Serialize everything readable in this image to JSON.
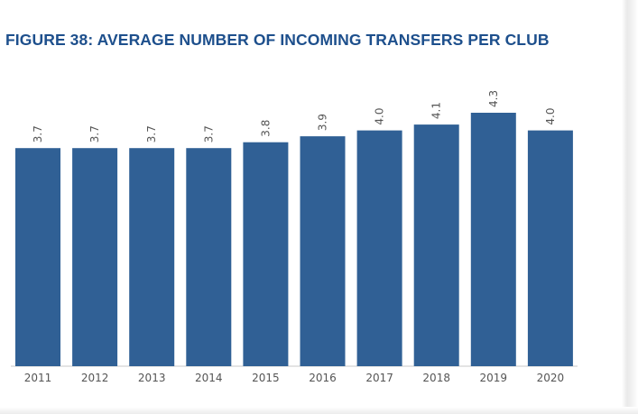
{
  "chart_data": {
    "type": "bar",
    "title": "FIGURE 38: AVERAGE NUMBER OF INCOMING TRANSFERS PER CLUB",
    "categories": [
      "2011",
      "2012",
      "2013",
      "2014",
      "2015",
      "2016",
      "2017",
      "2018",
      "2019",
      "2020"
    ],
    "values": [
      3.7,
      3.7,
      3.7,
      3.7,
      3.8,
      3.9,
      4.0,
      4.1,
      4.3,
      4.0
    ],
    "value_labels": [
      "3.7",
      "3.7",
      "3.7",
      "3.7",
      "3.8",
      "3.9",
      "4.0",
      "4.1",
      "4.3",
      "4.0"
    ],
    "xlabel": "",
    "ylabel": "",
    "grid": false,
    "legend": "none",
    "colors": {
      "bar": "#306095",
      "title": "#1d4f8c",
      "label": "#555555"
    }
  }
}
